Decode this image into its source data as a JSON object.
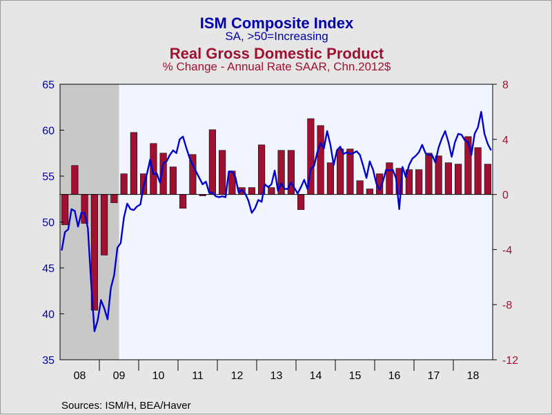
{
  "header": {
    "title1": "ISM Composite Index",
    "subtitle1": "SA, >50=Increasing",
    "title2": "Real Gross Domestic Product",
    "subtitle2": "% Change - Annual Rate    SAAR, Chn.2012$"
  },
  "footer": {
    "source": "Sources:  ISM/H, BEA/Haver"
  },
  "colors": {
    "ism_line": "#0000cc",
    "gdp_bars": "#a01030",
    "plot_bg": "#f0f5ff",
    "recession": "#c8c8c8",
    "left_axis": "#0000aa",
    "right_axis": "#a01030"
  },
  "chart_data": {
    "type": "bar+line",
    "x_categories": [
      "08",
      "09",
      "10",
      "11",
      "12",
      "13",
      "14",
      "15",
      "16",
      "17",
      "18"
    ],
    "x_range": [
      "2008-01",
      "2018-12"
    ],
    "recession_shading": [
      "2008-01",
      "2009-06"
    ],
    "left_axis": {
      "series": "ISM Composite Index",
      "ylim": [
        35,
        65
      ],
      "ticks": [
        35,
        40,
        45,
        50,
        55,
        60,
        65
      ]
    },
    "right_axis": {
      "series": "Real Gross Domestic Product",
      "ylim": [
        -12,
        8
      ],
      "ticks": [
        -12,
        -8,
        -4,
        0,
        4,
        8
      ]
    },
    "series": [
      {
        "name": "ISM Composite Index",
        "type": "line",
        "axis": "left",
        "start": "2008-01",
        "values": [
          46.9,
          48.9,
          49.2,
          51.4,
          51.2,
          49.5,
          51.0,
          51.0,
          49.3,
          43.3,
          38.1,
          39.3,
          41.5,
          40.6,
          39.4,
          42.8,
          44.2,
          47.2,
          47.7,
          50.5,
          52.0,
          51.4,
          51.3,
          51.7,
          51.9,
          53.9,
          55.2,
          56.8,
          55.2,
          55.3,
          54.3,
          56.4,
          56.6,
          57.3,
          57.8,
          57.5,
          59.0,
          59.3,
          58.1,
          57.0,
          56.2,
          55.5,
          54.8,
          54.1,
          54.4,
          53.2,
          53.2,
          52.8,
          52.7,
          52.8,
          52.7,
          55.5,
          55.5,
          54.9,
          53.2,
          53.5,
          53.1,
          52.3,
          51.0,
          51.5,
          52.4,
          52.2,
          54.1,
          53.8,
          54.1,
          55.6,
          53.4,
          54.2,
          53.6,
          53.6,
          54.3,
          53.7,
          53.1,
          53.8,
          54.6,
          53.6,
          55.8,
          56.1,
          57.6,
          58.6,
          58.0,
          59.9,
          58.4,
          56.2,
          57.8,
          58.2,
          57.4,
          57.6,
          57.4,
          57.5,
          57.7,
          57.3,
          56.1,
          54.8,
          56.6,
          55.7,
          54.2,
          53.5,
          54.4,
          55.7,
          55.6,
          55.7,
          54.8,
          51.4,
          56.0,
          54.9,
          56.2,
          56.9,
          57.2,
          57.6,
          58.4,
          57.5,
          57.3,
          57.3,
          56.5,
          58.1,
          59.1,
          59.9,
          58.7,
          57.1,
          58.7,
          59.6,
          59.5,
          58.9,
          58.7,
          57.3,
          59.6,
          60.3,
          62.0,
          59.6,
          58.5,
          57.8
        ]
      },
      {
        "name": "Real Gross Domestic Product",
        "type": "bar",
        "axis": "right",
        "start": "2008-Q1",
        "values": [
          -2.2,
          2.1,
          -2.1,
          -8.4,
          -4.4,
          -0.6,
          1.5,
          4.5,
          1.5,
          3.7,
          3.0,
          2.0,
          -1.0,
          2.9,
          -0.1,
          4.7,
          3.2,
          1.7,
          0.5,
          0.5,
          3.6,
          0.5,
          3.2,
          3.2,
          -1.1,
          5.5,
          5.0,
          2.3,
          3.3,
          3.3,
          1.0,
          0.4,
          1.5,
          2.3,
          1.9,
          1.8,
          1.8,
          3.0,
          2.8,
          2.3,
          2.2,
          4.2,
          3.4,
          2.2
        ]
      }
    ]
  }
}
